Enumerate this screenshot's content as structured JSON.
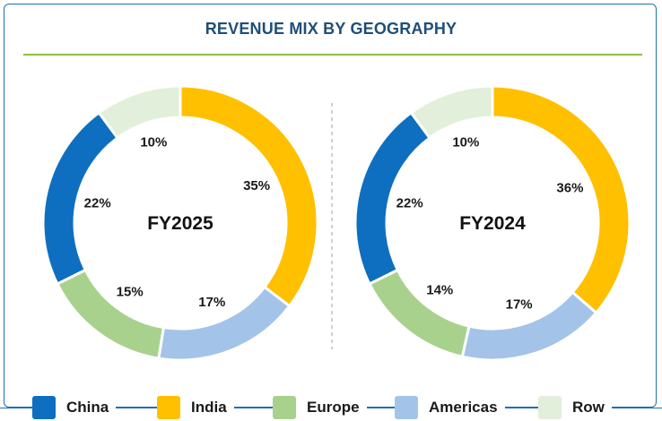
{
  "title": "REVENUE MIX BY GEOGRAPHY",
  "colors": {
    "China": "#0e6fc0",
    "India": "#ffc000",
    "Europe": "#a9d18e",
    "Americas": "#a3c4e8",
    "Row": "#e2efda"
  },
  "legend": [
    "China",
    "India",
    "Europe",
    "Americas",
    "Row"
  ],
  "chart_data": [
    {
      "type": "pie",
      "center_label": "FY2025",
      "slices": [
        {
          "name": "India",
          "value": 35,
          "label": "35%"
        },
        {
          "name": "Americas",
          "value": 17,
          "label": "17%"
        },
        {
          "name": "Europe",
          "value": 15,
          "label": "15%"
        },
        {
          "name": "China",
          "value": 22,
          "label": "22%"
        },
        {
          "name": "Row",
          "value": 10,
          "label": "10%"
        }
      ]
    },
    {
      "type": "pie",
      "center_label": "FY2024",
      "slices": [
        {
          "name": "India",
          "value": 36,
          "label": "36%"
        },
        {
          "name": "Americas",
          "value": 17,
          "label": "17%"
        },
        {
          "name": "Europe",
          "value": 14,
          "label": "14%"
        },
        {
          "name": "China",
          "value": 22,
          "label": "22%"
        },
        {
          "name": "Row",
          "value": 10,
          "label": "10%"
        }
      ]
    }
  ]
}
